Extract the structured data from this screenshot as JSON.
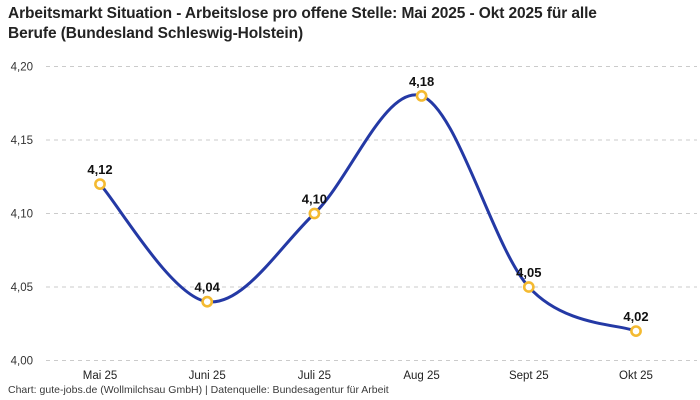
{
  "page": {
    "title": "Arbeitsmarkt Situation - Arbeitslose pro offene Stelle: Mai 2025 - Okt 2025 für alle\nBerufe (Bundesland Schleswig-Holstein)",
    "footer": "Chart: gute-jobs.de (Wollmilchsau GmbH) | Datenquelle: Bundesagentur für Arbeit"
  },
  "colors": {
    "line": "#2439a5",
    "marker_ring": "#f4ba31",
    "marker_fill": "#ffffff",
    "gridline": "#cbcbcb",
    "title_text": "#232323",
    "axis_text": "#333333",
    "point_label_text": "#111111",
    "background": "#ffffff"
  },
  "chart_data": {
    "type": "line",
    "title": "Arbeitsmarkt Situation - Arbeitslose pro offene Stelle: Mai 2025 - Okt 2025 für alle Berufe (Bundesland Schleswig-Holstein)",
    "categories": [
      "Mai 25",
      "Juni 25",
      "Juli 25",
      "Aug 25",
      "Sept 25",
      "Okt 25"
    ],
    "values": [
      4.12,
      4.04,
      4.1,
      4.18,
      4.05,
      4.02
    ],
    "point_labels": [
      "4,12",
      "4,04",
      "4,10",
      "4,18",
      "4,05",
      "4,02"
    ],
    "y_ticks": [
      {
        "value": 4.0,
        "label": "4,00"
      },
      {
        "value": 4.05,
        "label": "4,05"
      },
      {
        "value": 4.1,
        "label": "4,10"
      },
      {
        "value": 4.15,
        "label": "4,15"
      },
      {
        "value": 4.2,
        "label": "4,20"
      }
    ],
    "ylim": [
      4.0,
      4.2
    ],
    "xlabel": "",
    "ylabel": "",
    "grid": "horizontal-dashed",
    "legend": "none",
    "smooth": true
  }
}
